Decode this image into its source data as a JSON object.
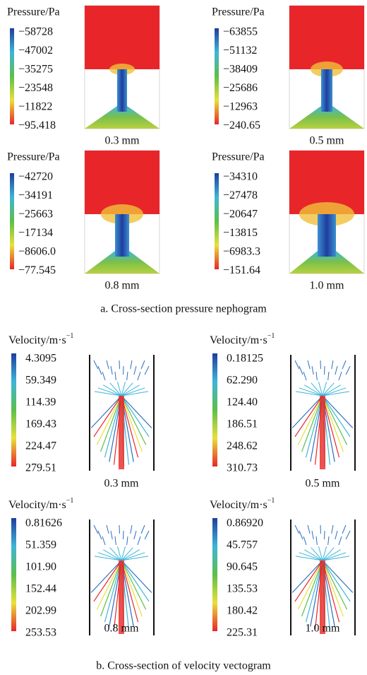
{
  "pressure": {
    "caption": "a. Cross-section pressure nephogram",
    "panels": [
      {
        "title": "Pressure/Pa",
        "labels": [
          "−58728",
          "−47002",
          "−35275",
          "−23548",
          "−11822",
          "−95.418"
        ],
        "label": "0.3 mm"
      },
      {
        "title": "Pressure/Pa",
        "labels": [
          "−63855",
          "−51132",
          "−38409",
          "−25686",
          "−12963",
          "−240.65"
        ],
        "label": "0.5 mm"
      },
      {
        "title": "Pressure/Pa",
        "labels": [
          "−42720",
          "−34191",
          "−25663",
          "−17134",
          "−8606.0",
          "−77.545"
        ],
        "label": "0.8 mm"
      },
      {
        "title": "Pressure/Pa",
        "labels": [
          "−34310",
          "−27478",
          "−20647",
          "−13815",
          "−6983.3",
          "−151.64"
        ],
        "label": "1.0 mm"
      }
    ]
  },
  "velocity": {
    "caption": "b. Cross-section of velocity vectogram",
    "panels": [
      {
        "title": "Velocity/m·s",
        "title_sup": "−1",
        "labels": [
          "4.3095",
          "59.349",
          "114.39",
          "169.43",
          "224.47",
          "279.51"
        ],
        "label": "0.3 mm"
      },
      {
        "title": "Velocity/m·s",
        "title_sup": "−1",
        "labels": [
          "0.18125",
          "62.290",
          "124.40",
          "186.51",
          "248.62",
          "310.73"
        ],
        "label": "0.5 mm"
      },
      {
        "title": "Velocity/m·s",
        "title_sup": "−1",
        "labels": [
          "0.81626",
          "51.359",
          "101.90",
          "152.44",
          "202.99",
          "253.53"
        ],
        "label": "0.8 mm"
      },
      {
        "title": "Velocity/m·s",
        "title_sup": "−1",
        "labels": [
          "0.86920",
          "45.757",
          "90.645",
          "135.53",
          "180.42",
          "225.31"
        ],
        "label": "1.0 mm"
      }
    ]
  }
}
